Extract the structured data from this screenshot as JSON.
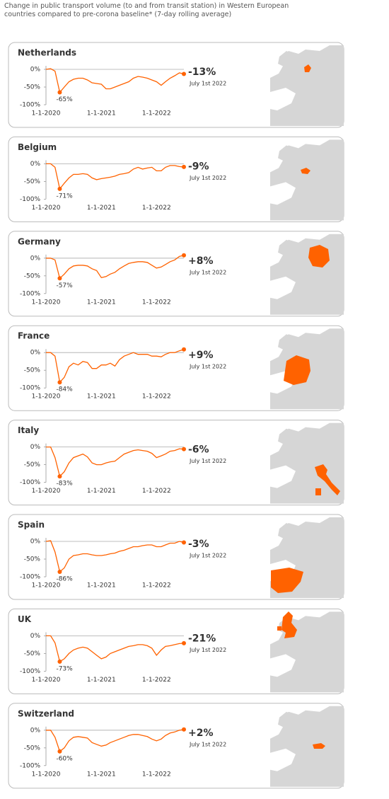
{
  "title": "Change in public transport volume (to and from transit station) in Western European countries compared to pre-corona baseline* (7-day rolling average)",
  "chart_data": [
    {
      "type": "line",
      "title": "Netherlands",
      "color": "#ff6200",
      "annotation": "July 1st 2022",
      "x": [
        "1-1-2020",
        "1-2-2020",
        "1-3-2020",
        "1-4-2020",
        "1-5-2020",
        "1-6-2020",
        "1-7-2020",
        "1-8-2020",
        "1-9-2020",
        "1-10-2020",
        "1-11-2020",
        "1-12-2020",
        "1-1-2021",
        "1-2-2021",
        "1-3-2021",
        "1-4-2021",
        "1-5-2021",
        "1-6-2021",
        "1-7-2021",
        "1-8-2021",
        "1-9-2021",
        "1-10-2021",
        "1-11-2021",
        "1-12-2021",
        "1-1-2022",
        "1-2-2022",
        "1-3-2022",
        "1-4-2022",
        "1-5-2022",
        "1-6-2022",
        "1-7-2022"
      ],
      "values": [
        0,
        2,
        -5,
        -65,
        -50,
        -35,
        -28,
        -25,
        -25,
        -30,
        -38,
        -40,
        -42,
        -55,
        -55,
        -50,
        -45,
        -40,
        -35,
        -25,
        -20,
        -22,
        -25,
        -30,
        -35,
        -45,
        -35,
        -25,
        -18,
        -10,
        -13
      ],
      "value_labels": [
        null,
        null,
        null,
        "-65%",
        null,
        null,
        null,
        null,
        null,
        null,
        null,
        null,
        null,
        null,
        null,
        null,
        null,
        null,
        null,
        null,
        null,
        null,
        null,
        null,
        null,
        null,
        null,
        null,
        null,
        null,
        "-13%"
      ],
      "xlim": [
        "1-1-2020",
        "1-7-2022"
      ],
      "xticks": [
        "1-1-2020",
        "1-1-2021",
        "1-1-2022"
      ],
      "ylim": [
        -100,
        10
      ],
      "yticks": [
        {
          "value": 0,
          "label": "0%"
        },
        {
          "value": -50,
          "label": "-50%"
        },
        {
          "value": -100,
          "label": "-100%"
        }
      ],
      "zero_line": true
    },
    {
      "type": "line",
      "title": "Belgium",
      "color": "#ff6200",
      "annotation": "July 1st 2022",
      "x": [
        "1-1-2020",
        "1-2-2020",
        "1-3-2020",
        "1-4-2020",
        "1-5-2020",
        "1-6-2020",
        "1-7-2020",
        "1-8-2020",
        "1-9-2020",
        "1-10-2020",
        "1-11-2020",
        "1-12-2020",
        "1-1-2021",
        "1-2-2021",
        "1-3-2021",
        "1-4-2021",
        "1-5-2021",
        "1-6-2021",
        "1-7-2021",
        "1-8-2021",
        "1-9-2021",
        "1-10-2021",
        "1-11-2021",
        "1-12-2021",
        "1-1-2022",
        "1-2-2022",
        "1-3-2022",
        "1-4-2022",
        "1-5-2022",
        "1-6-2022",
        "1-7-2022"
      ],
      "values": [
        0,
        0,
        -10,
        -71,
        -55,
        -40,
        -30,
        -30,
        -28,
        -30,
        -40,
        -45,
        -42,
        -40,
        -38,
        -35,
        -30,
        -28,
        -25,
        -15,
        -10,
        -15,
        -12,
        -10,
        -20,
        -20,
        -10,
        -5,
        -5,
        -8,
        -9
      ],
      "value_labels": [
        null,
        null,
        null,
        "-71%",
        null,
        null,
        null,
        null,
        null,
        null,
        null,
        null,
        null,
        null,
        null,
        null,
        null,
        null,
        null,
        null,
        null,
        null,
        null,
        null,
        null,
        null,
        null,
        null,
        null,
        null,
        "-9%"
      ],
      "xlim": [
        "1-1-2020",
        "1-7-2022"
      ],
      "xticks": [
        "1-1-2020",
        "1-1-2021",
        "1-1-2022"
      ],
      "ylim": [
        -100,
        10
      ],
      "yticks": [
        {
          "value": 0,
          "label": "0%"
        },
        {
          "value": -50,
          "label": "-50%"
        },
        {
          "value": -100,
          "label": "-100%"
        }
      ],
      "zero_line": true
    },
    {
      "type": "line",
      "title": "Germany",
      "color": "#ff6200",
      "annotation": "July 1st 2022",
      "x": [
        "1-1-2020",
        "1-2-2020",
        "1-3-2020",
        "1-4-2020",
        "1-5-2020",
        "1-6-2020",
        "1-7-2020",
        "1-8-2020",
        "1-9-2020",
        "1-10-2020",
        "1-11-2020",
        "1-12-2020",
        "1-1-2021",
        "1-2-2021",
        "1-3-2021",
        "1-4-2021",
        "1-5-2021",
        "1-6-2021",
        "1-7-2021",
        "1-8-2021",
        "1-9-2021",
        "1-10-2021",
        "1-11-2021",
        "1-12-2021",
        "1-1-2022",
        "1-2-2022",
        "1-3-2022",
        "1-4-2022",
        "1-5-2022",
        "1-6-2022",
        "1-7-2022"
      ],
      "values": [
        0,
        0,
        -5,
        -57,
        -45,
        -30,
        -22,
        -20,
        -20,
        -22,
        -30,
        -35,
        -55,
        -52,
        -45,
        -40,
        -30,
        -22,
        -15,
        -12,
        -10,
        -10,
        -12,
        -20,
        -28,
        -25,
        -18,
        -10,
        -5,
        5,
        8
      ],
      "value_labels": [
        null,
        null,
        null,
        "-57%",
        null,
        null,
        null,
        null,
        null,
        null,
        null,
        null,
        null,
        null,
        null,
        null,
        null,
        null,
        null,
        null,
        null,
        null,
        null,
        null,
        null,
        null,
        null,
        null,
        null,
        null,
        "+8%"
      ],
      "xlim": [
        "1-1-2020",
        "1-7-2022"
      ],
      "xticks": [
        "1-1-2020",
        "1-1-2021",
        "1-1-2022"
      ],
      "ylim": [
        -100,
        10
      ],
      "yticks": [
        {
          "value": 0,
          "label": "0%"
        },
        {
          "value": -50,
          "label": "-50%"
        },
        {
          "value": -100,
          "label": "-100%"
        }
      ],
      "zero_line": true
    },
    {
      "type": "line",
      "title": "France",
      "color": "#ff6200",
      "annotation": "July 1st 2022",
      "x": [
        "1-1-2020",
        "1-2-2020",
        "1-3-2020",
        "1-4-2020",
        "1-5-2020",
        "1-6-2020",
        "1-7-2020",
        "1-8-2020",
        "1-9-2020",
        "1-10-2020",
        "1-11-2020",
        "1-12-2020",
        "1-1-2021",
        "1-2-2021",
        "1-3-2021",
        "1-4-2021",
        "1-5-2021",
        "1-6-2021",
        "1-7-2021",
        "1-8-2021",
        "1-9-2021",
        "1-10-2021",
        "1-11-2021",
        "1-12-2021",
        "1-1-2022",
        "1-2-2022",
        "1-3-2022",
        "1-4-2022",
        "1-5-2022",
        "1-6-2022",
        "1-7-2022"
      ],
      "values": [
        0,
        0,
        -10,
        -84,
        -70,
        -40,
        -30,
        -35,
        -25,
        -28,
        -45,
        -45,
        -35,
        -35,
        -30,
        -38,
        -20,
        -10,
        -5,
        0,
        -5,
        -5,
        -5,
        -10,
        -10,
        -12,
        -5,
        0,
        0,
        5,
        9
      ],
      "value_labels": [
        null,
        null,
        null,
        "-84%",
        null,
        null,
        null,
        null,
        null,
        null,
        null,
        null,
        null,
        null,
        null,
        null,
        null,
        null,
        null,
        null,
        null,
        null,
        null,
        null,
        null,
        null,
        null,
        null,
        null,
        null,
        "+9%"
      ],
      "xlim": [
        "1-1-2020",
        "1-7-2022"
      ],
      "xticks": [
        "1-1-2020",
        "1-1-2021",
        "1-1-2022"
      ],
      "ylim": [
        -100,
        10
      ],
      "yticks": [
        {
          "value": 0,
          "label": "0%"
        },
        {
          "value": -50,
          "label": "-50%"
        },
        {
          "value": -100,
          "label": "-100%"
        }
      ],
      "zero_line": true
    },
    {
      "type": "line",
      "title": "Italy",
      "color": "#ff6200",
      "annotation": "July 1st 2022",
      "x": [
        "1-1-2020",
        "1-2-2020",
        "1-3-2020",
        "1-4-2020",
        "1-5-2020",
        "1-6-2020",
        "1-7-2020",
        "1-8-2020",
        "1-9-2020",
        "1-10-2020",
        "1-11-2020",
        "1-12-2020",
        "1-1-2021",
        "1-2-2021",
        "1-3-2021",
        "1-4-2021",
        "1-5-2021",
        "1-6-2021",
        "1-7-2021",
        "1-8-2021",
        "1-9-2021",
        "1-10-2021",
        "1-11-2021",
        "1-12-2021",
        "1-1-2022",
        "1-2-2022",
        "1-3-2022",
        "1-4-2022",
        "1-5-2022",
        "1-6-2022",
        "1-7-2022"
      ],
      "values": [
        0,
        0,
        -30,
        -83,
        -70,
        -45,
        -30,
        -25,
        -20,
        -28,
        -45,
        -50,
        -50,
        -45,
        -42,
        -40,
        -30,
        -20,
        -15,
        -10,
        -8,
        -10,
        -12,
        -18,
        -30,
        -25,
        -20,
        -12,
        -10,
        -5,
        -6
      ],
      "value_labels": [
        null,
        null,
        null,
        "-83%",
        null,
        null,
        null,
        null,
        null,
        null,
        null,
        null,
        null,
        null,
        null,
        null,
        null,
        null,
        null,
        null,
        null,
        null,
        null,
        null,
        null,
        null,
        null,
        null,
        null,
        null,
        "-6%"
      ],
      "xlim": [
        "1-1-2020",
        "1-7-2022"
      ],
      "xticks": [
        "1-1-2020",
        "1-1-2021",
        "1-1-2022"
      ],
      "ylim": [
        -100,
        10
      ],
      "yticks": [
        {
          "value": 0,
          "label": "0%"
        },
        {
          "value": -50,
          "label": "-50%"
        },
        {
          "value": -100,
          "label": "-100%"
        }
      ],
      "zero_line": true
    },
    {
      "type": "line",
      "title": "Spain",
      "color": "#ff6200",
      "annotation": "July 1st 2022",
      "x": [
        "1-1-2020",
        "1-2-2020",
        "1-3-2020",
        "1-4-2020",
        "1-5-2020",
        "1-6-2020",
        "1-7-2020",
        "1-8-2020",
        "1-9-2020",
        "1-10-2020",
        "1-11-2020",
        "1-12-2020",
        "1-1-2021",
        "1-2-2021",
        "1-3-2021",
        "1-4-2021",
        "1-5-2021",
        "1-6-2021",
        "1-7-2021",
        "1-8-2021",
        "1-9-2021",
        "1-10-2021",
        "1-11-2021",
        "1-12-2021",
        "1-1-2022",
        "1-2-2022",
        "1-3-2022",
        "1-4-2022",
        "1-5-2022",
        "1-6-2022",
        "1-7-2022"
      ],
      "values": [
        0,
        2,
        -30,
        -86,
        -75,
        -50,
        -40,
        -38,
        -35,
        -35,
        -38,
        -40,
        -40,
        -38,
        -35,
        -33,
        -28,
        -25,
        -20,
        -15,
        -15,
        -12,
        -10,
        -10,
        -15,
        -15,
        -10,
        -5,
        -5,
        0,
        -3
      ],
      "value_labels": [
        null,
        null,
        null,
        "-86%",
        null,
        null,
        null,
        null,
        null,
        null,
        null,
        null,
        null,
        null,
        null,
        null,
        null,
        null,
        null,
        null,
        null,
        null,
        null,
        null,
        null,
        null,
        null,
        null,
        null,
        null,
        "-3%"
      ],
      "xlim": [
        "1-1-2020",
        "1-7-2022"
      ],
      "xticks": [
        "1-1-2020",
        "1-1-2021",
        "1-1-2022"
      ],
      "ylim": [
        -100,
        10
      ],
      "yticks": [
        {
          "value": 0,
          "label": "0%"
        },
        {
          "value": -50,
          "label": "-50%"
        },
        {
          "value": -100,
          "label": "-100%"
        }
      ],
      "zero_line": true
    },
    {
      "type": "line",
      "title": "UK",
      "color": "#ff6200",
      "annotation": "July 1st 2022",
      "x": [
        "1-1-2020",
        "1-2-2020",
        "1-3-2020",
        "1-4-2020",
        "1-5-2020",
        "1-6-2020",
        "1-7-2020",
        "1-8-2020",
        "1-9-2020",
        "1-10-2020",
        "1-11-2020",
        "1-12-2020",
        "1-1-2021",
        "1-2-2021",
        "1-3-2021",
        "1-4-2021",
        "1-5-2021",
        "1-6-2021",
        "1-7-2021",
        "1-8-2021",
        "1-9-2021",
        "1-10-2021",
        "1-11-2021",
        "1-12-2021",
        "1-1-2022",
        "1-2-2022",
        "1-3-2022",
        "1-4-2022",
        "1-5-2022",
        "1-6-2022",
        "1-7-2022"
      ],
      "values": [
        0,
        0,
        -20,
        -73,
        -65,
        -50,
        -40,
        -35,
        -32,
        -35,
        -45,
        -55,
        -65,
        -60,
        -50,
        -45,
        -40,
        -35,
        -30,
        -28,
        -25,
        -25,
        -28,
        -35,
        -55,
        -40,
        -30,
        -28,
        -25,
        -22,
        -21
      ],
      "value_labels": [
        null,
        null,
        null,
        "-73%",
        null,
        null,
        null,
        null,
        null,
        null,
        null,
        null,
        null,
        null,
        null,
        null,
        null,
        null,
        null,
        null,
        null,
        null,
        null,
        null,
        null,
        null,
        null,
        null,
        null,
        null,
        "-21%"
      ],
      "xlim": [
        "1-1-2020",
        "1-7-2022"
      ],
      "xticks": [
        "1-1-2020",
        "1-1-2021",
        "1-1-2022"
      ],
      "ylim": [
        -100,
        10
      ],
      "yticks": [
        {
          "value": 0,
          "label": "0%"
        },
        {
          "value": -50,
          "label": "-50%"
        },
        {
          "value": -100,
          "label": "-100%"
        }
      ],
      "zero_line": true
    },
    {
      "type": "line",
      "title": "Switzerland",
      "color": "#ff6200",
      "annotation": "July 1st 2022",
      "x": [
        "1-1-2020",
        "1-2-2020",
        "1-3-2020",
        "1-4-2020",
        "1-5-2020",
        "1-6-2020",
        "1-7-2020",
        "1-8-2020",
        "1-9-2020",
        "1-10-2020",
        "1-11-2020",
        "1-12-2020",
        "1-1-2021",
        "1-2-2021",
        "1-3-2021",
        "1-4-2021",
        "1-5-2021",
        "1-6-2021",
        "1-7-2021",
        "1-8-2021",
        "1-9-2021",
        "1-10-2021",
        "1-11-2021",
        "1-12-2021",
        "1-1-2022",
        "1-2-2022",
        "1-3-2022",
        "1-4-2022",
        "1-5-2022",
        "1-6-2022",
        "1-7-2022"
      ],
      "values": [
        0,
        0,
        -20,
        -60,
        -50,
        -30,
        -20,
        -18,
        -20,
        -22,
        -35,
        -40,
        -45,
        -42,
        -35,
        -30,
        -25,
        -20,
        -15,
        -12,
        -12,
        -15,
        -18,
        -25,
        -30,
        -25,
        -15,
        -8,
        -5,
        0,
        2
      ],
      "value_labels": [
        null,
        null,
        null,
        "-60%",
        null,
        null,
        null,
        null,
        null,
        null,
        null,
        null,
        null,
        null,
        null,
        null,
        null,
        null,
        null,
        null,
        null,
        null,
        null,
        null,
        null,
        null,
        null,
        null,
        null,
        null,
        "+2%"
      ],
      "xlim": [
        "1-1-2020",
        "1-7-2022"
      ],
      "xticks": [
        "1-1-2020",
        "1-1-2021",
        "1-1-2022"
      ],
      "ylim": [
        -100,
        10
      ],
      "yticks": [
        {
          "value": 0,
          "label": "0%"
        },
        {
          "value": -50,
          "label": "-50%"
        },
        {
          "value": -100,
          "label": "-100%"
        }
      ],
      "zero_line": true
    }
  ]
}
